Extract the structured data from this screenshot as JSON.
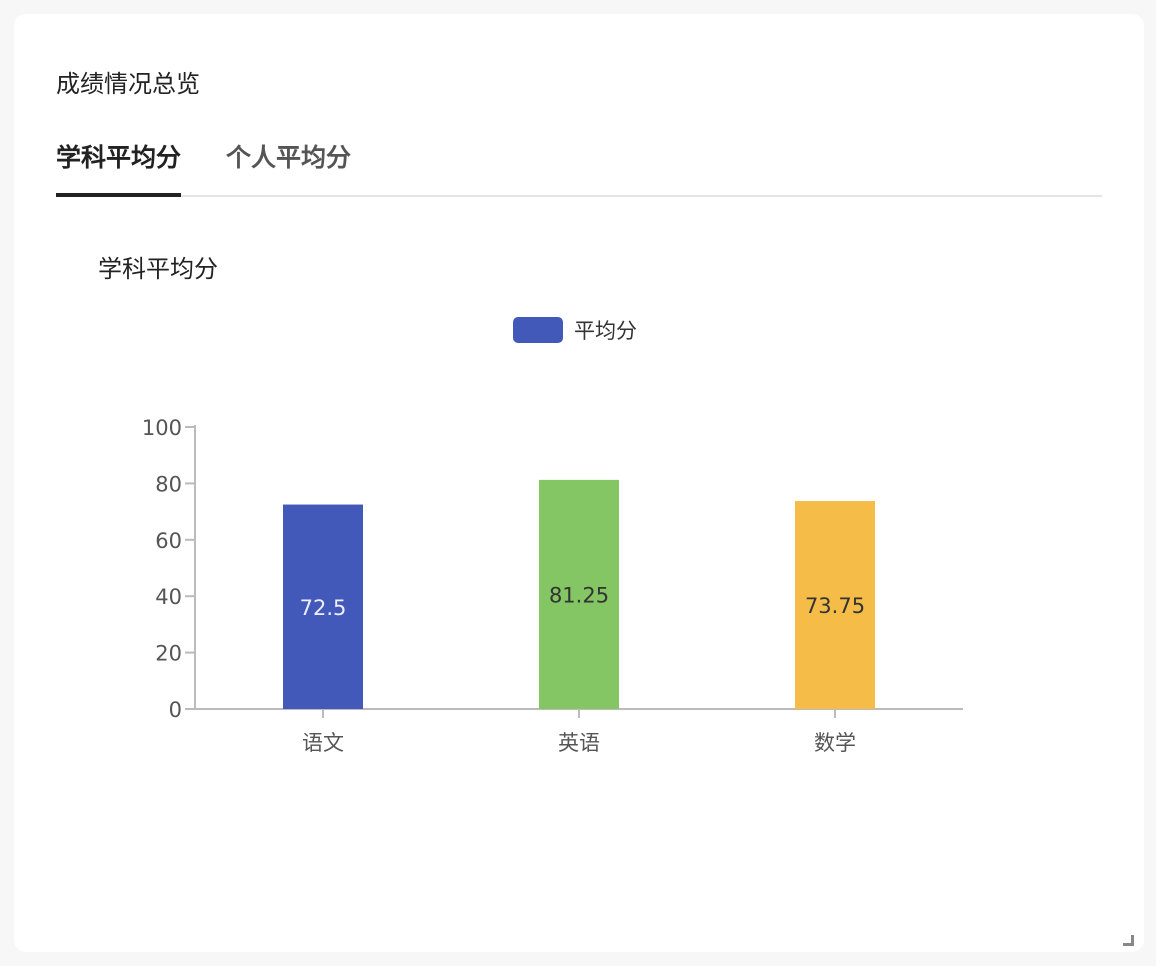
{
  "card": {
    "title": "成绩情况总览"
  },
  "tabs": [
    {
      "label": "学科平均分",
      "active": true
    },
    {
      "label": "个人平均分",
      "active": false
    }
  ],
  "chart_data": {
    "type": "bar",
    "title": "学科平均分",
    "categories": [
      "语文",
      "英语",
      "数学"
    ],
    "series": [
      {
        "name": "平均分",
        "values": [
          72.5,
          81.25,
          73.75
        ],
        "colors": [
          "#4259b9",
          "#84c663",
          "#f5bd48"
        ]
      }
    ],
    "data_labels": [
      "72.5",
      "81.25",
      "73.75"
    ],
    "ylim": [
      0,
      100
    ],
    "yticks": [
      0,
      20,
      40,
      60,
      80,
      100
    ],
    "legend": "top-center",
    "legend_color": "#4259b9",
    "grid": false
  }
}
